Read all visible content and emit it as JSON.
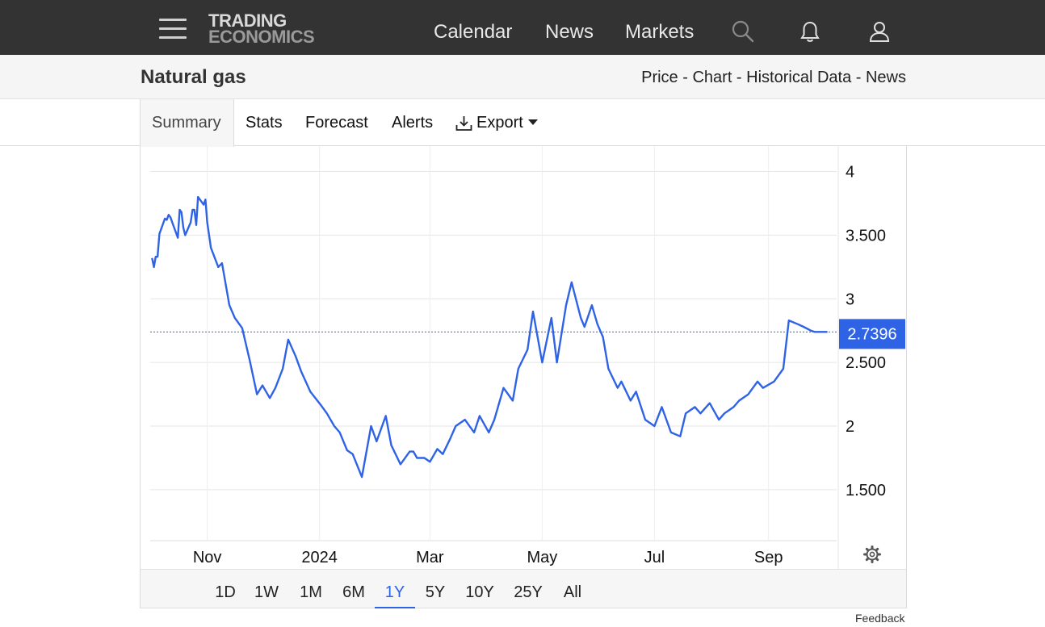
{
  "nav": {
    "logo_line1": "TRADING",
    "logo_line2": "ECONOMICS",
    "links": [
      "Calendar",
      "News",
      "Markets"
    ],
    "icons": [
      "menu-icon",
      "search-icon",
      "bell-icon",
      "user-icon"
    ]
  },
  "page": {
    "title": "Natural gas",
    "breadcrumb": [
      "Price",
      "Chart",
      "Historical Data",
      "News"
    ],
    "breadcrumb_sep": " - "
  },
  "tabs": {
    "items": [
      "Summary",
      "Stats",
      "Forecast",
      "Alerts",
      "Export"
    ],
    "active": "Summary",
    "export_icon": "download-icon"
  },
  "chart_data": {
    "type": "line",
    "x_tick_labels": [
      "Nov",
      "2024",
      "Mar",
      "May",
      "Jul",
      "Sep"
    ],
    "y_tick_labels": [
      "1.500",
      "2",
      "2.500",
      "3",
      "3.500",
      "4"
    ],
    "y_ticks": [
      1.5,
      2,
      2.5,
      3,
      3.5,
      4
    ],
    "ylim": [
      1.1,
      4.2
    ],
    "last_value": 2.7396,
    "last_value_label": "2.7396",
    "line_color": "#2f63e6",
    "grid": true,
    "settings_icon": "gear-icon",
    "series": [
      {
        "x": [
          "2023-10-02",
          "2023-10-03",
          "2023-10-04",
          "2023-10-05",
          "2023-10-06",
          "2023-10-09",
          "2023-10-10",
          "2023-10-11",
          "2023-10-12",
          "2023-10-13",
          "2023-10-16",
          "2023-10-17",
          "2023-10-18",
          "2023-10-19",
          "2023-10-20",
          "2023-10-23",
          "2023-10-24",
          "2023-10-25",
          "2023-10-26",
          "2023-10-27",
          "2023-10-30",
          "2023-10-31",
          "2023-11-01",
          "2023-11-03",
          "2023-11-07",
          "2023-11-09",
          "2023-11-13",
          "2023-11-16",
          "2023-11-20",
          "2023-11-24",
          "2023-11-28",
          "2023-12-01",
          "2023-12-05",
          "2023-12-08",
          "2023-12-12",
          "2023-12-15",
          "2023-12-19",
          "2023-12-22",
          "2023-12-27",
          "2024-01-02",
          "2024-01-05",
          "2024-01-09",
          "2024-01-12",
          "2024-01-16",
          "2024-01-19",
          "2024-01-24",
          "2024-01-29",
          "2024-02-01",
          "2024-02-06",
          "2024-02-09",
          "2024-02-14",
          "2024-02-19",
          "2024-02-21",
          "2024-02-23",
          "2024-02-27",
          "2024-03-01",
          "2024-03-05",
          "2024-03-08",
          "2024-03-12",
          "2024-03-15",
          "2024-03-20",
          "2024-03-25",
          "2024-03-28",
          "2024-04-02",
          "2024-04-05",
          "2024-04-10",
          "2024-04-15",
          "2024-04-18",
          "2024-04-23",
          "2024-04-26",
          "2024-05-01",
          "2024-05-06",
          "2024-05-09",
          "2024-05-14",
          "2024-05-17",
          "2024-05-22",
          "2024-05-24",
          "2024-05-28",
          "2024-05-31",
          "2024-06-03",
          "2024-06-06",
          "2024-06-11",
          "2024-06-13",
          "2024-06-18",
          "2024-06-21",
          "2024-06-26",
          "2024-07-01",
          "2024-07-05",
          "2024-07-10",
          "2024-07-15",
          "2024-07-18",
          "2024-07-23",
          "2024-07-26",
          "2024-07-31",
          "2024-08-05",
          "2024-08-08",
          "2024-08-13",
          "2024-08-16",
          "2024-08-21",
          "2024-08-26",
          "2024-08-29",
          "2024-09-04",
          "2024-09-09",
          "2024-09-12",
          "2024-09-17",
          "2024-09-20",
          "2024-09-24",
          "2024-09-26",
          "2024-09-30",
          "2024-10-03"
        ],
        "y": [
          3.32,
          3.25,
          3.33,
          3.33,
          3.51,
          3.63,
          3.62,
          3.66,
          3.64,
          3.6,
          3.48,
          3.7,
          3.68,
          3.56,
          3.5,
          3.6,
          3.7,
          3.7,
          3.58,
          3.8,
          3.74,
          3.78,
          3.6,
          3.4,
          3.25,
          3.28,
          2.95,
          2.85,
          2.77,
          2.52,
          2.25,
          2.32,
          2.22,
          2.3,
          2.45,
          2.68,
          2.55,
          2.43,
          2.27,
          2.16,
          2.1,
          2.0,
          1.95,
          1.81,
          1.78,
          1.6,
          2.0,
          1.88,
          2.08,
          1.85,
          1.7,
          1.8,
          1.8,
          1.75,
          1.75,
          1.72,
          1.82,
          1.78,
          1.9,
          2.0,
          2.05,
          1.95,
          2.08,
          1.95,
          2.05,
          2.3,
          2.2,
          2.45,
          2.6,
          2.9,
          2.5,
          2.85,
          2.5,
          2.95,
          3.13,
          2.85,
          2.78,
          2.95,
          2.8,
          2.7,
          2.45,
          2.3,
          2.35,
          2.2,
          2.27,
          2.05,
          2.0,
          2.15,
          1.95,
          1.92,
          2.1,
          2.15,
          2.1,
          2.18,
          2.05,
          2.1,
          2.15,
          2.2,
          2.25,
          2.35,
          2.3,
          2.35,
          2.45,
          2.83,
          2.8,
          2.78,
          2.75,
          2.74,
          2.74,
          2.74
        ]
      }
    ]
  },
  "ranges": {
    "items": [
      "1D",
      "1W",
      "1M",
      "6M",
      "1Y",
      "5Y",
      "10Y",
      "25Y",
      "All"
    ],
    "active": "1Y"
  },
  "footer": {
    "feedback": "Feedback"
  }
}
